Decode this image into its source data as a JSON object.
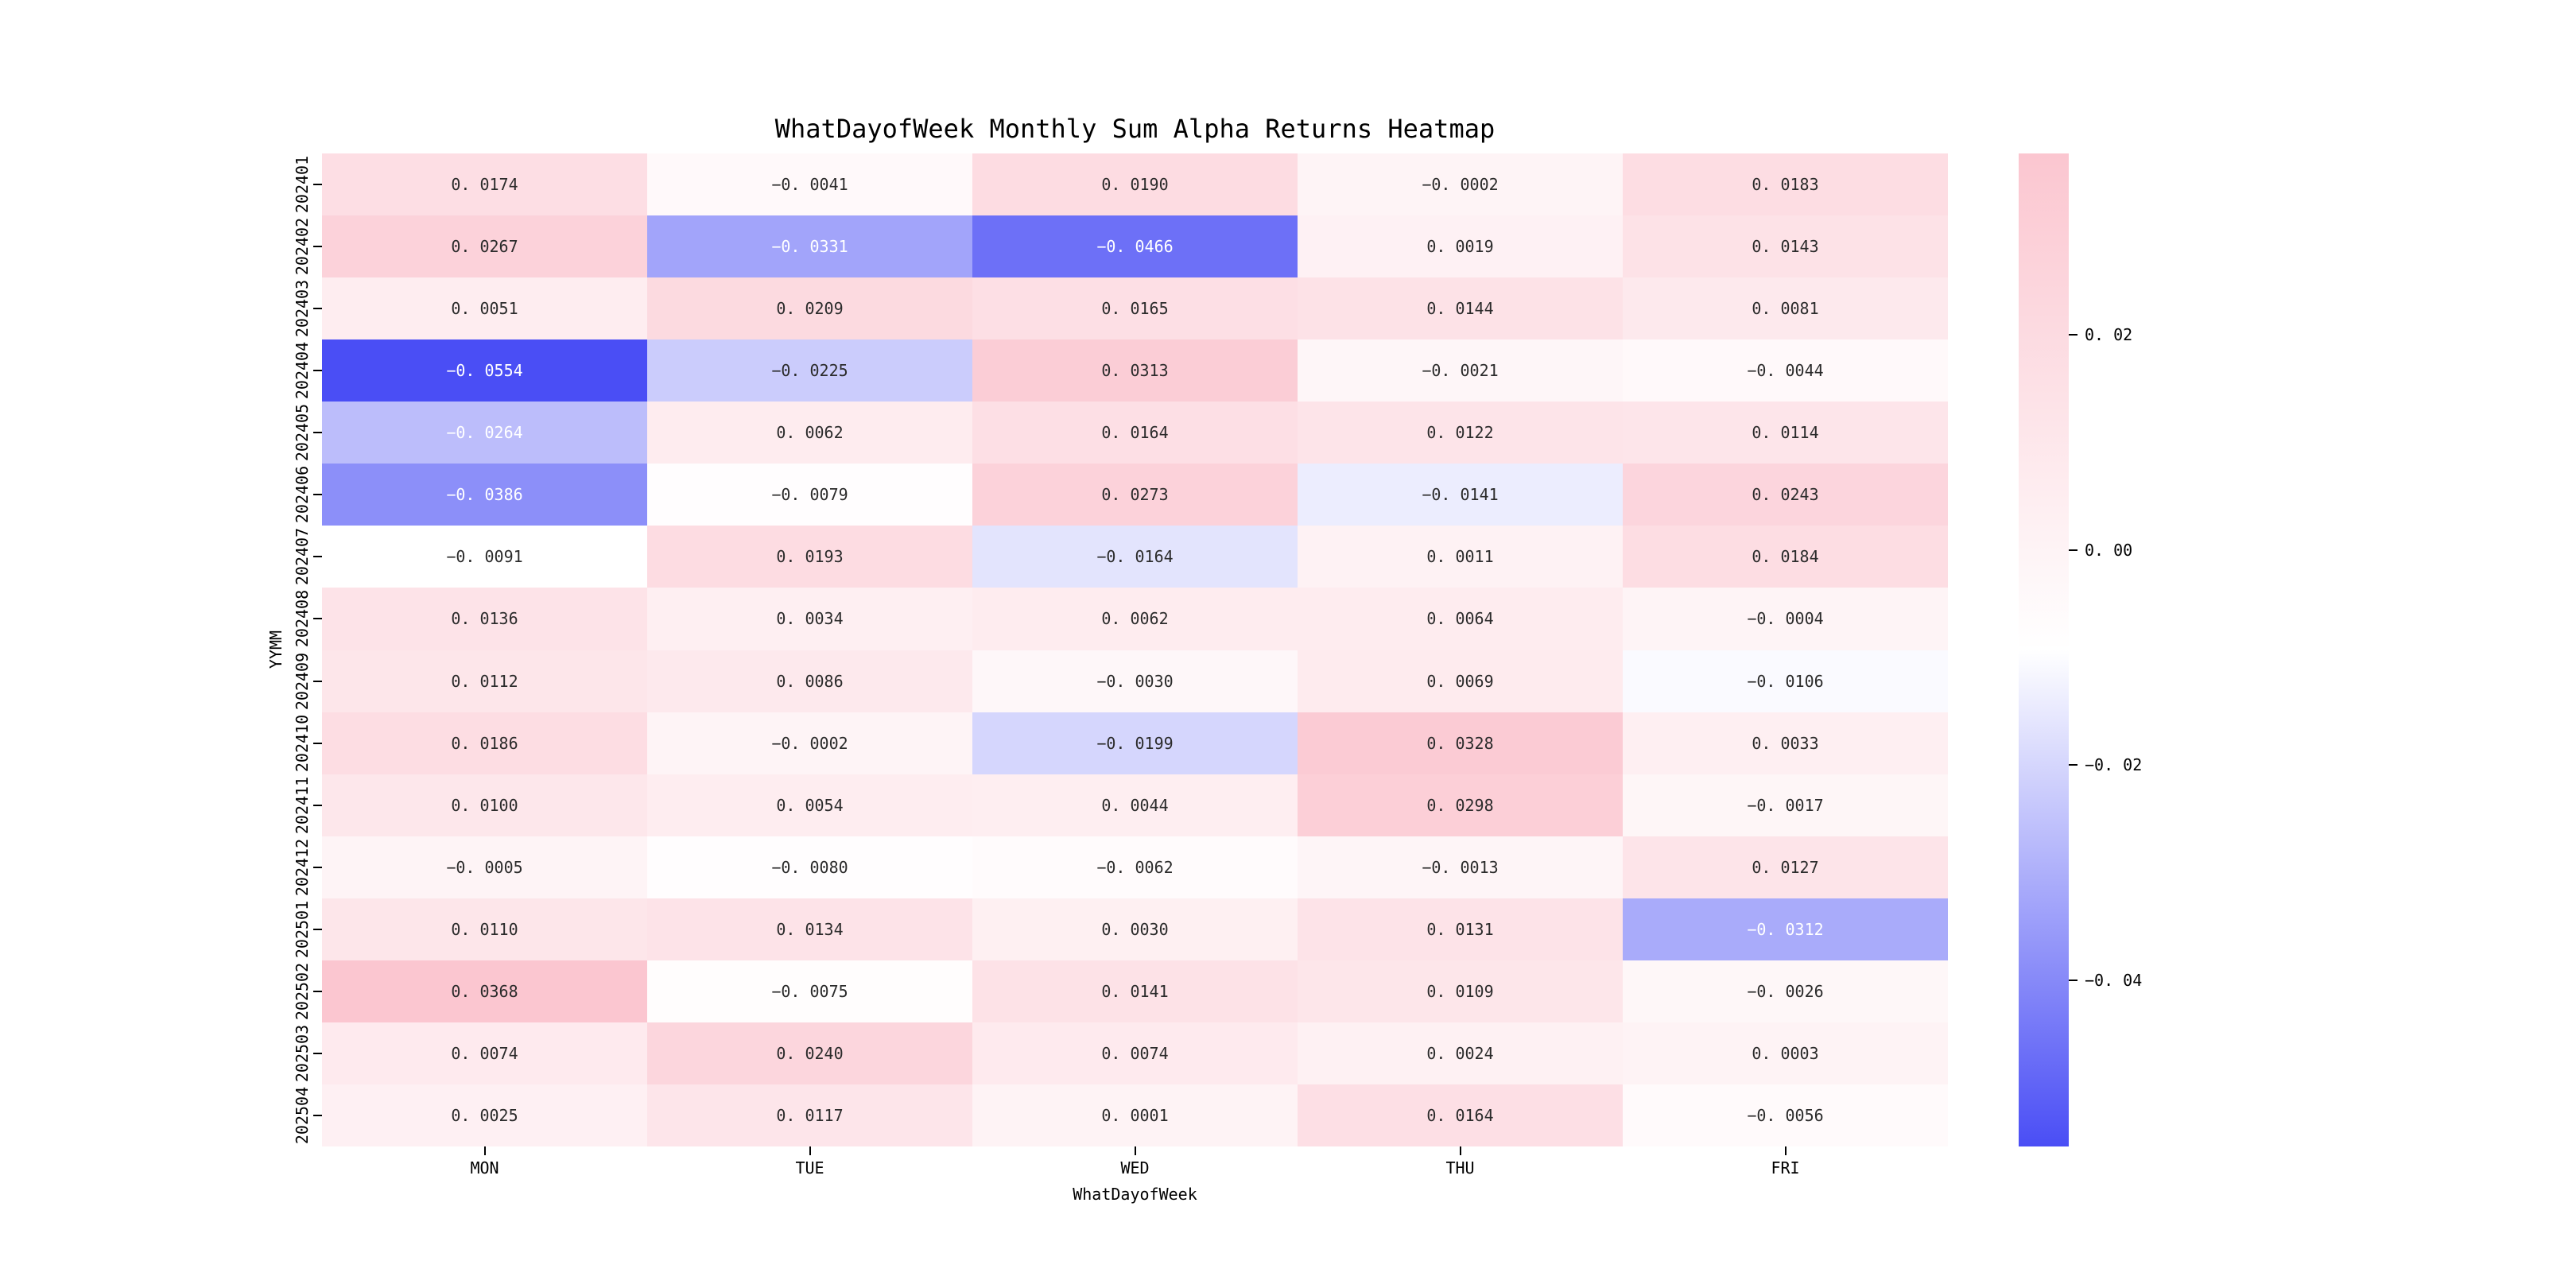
{
  "page": {
    "background": "#ffffff"
  },
  "chart_data": {
    "type": "heatmap",
    "title": "WhatDayofWeek Monthly Sum Alpha Returns Heatmap",
    "xlabel": "WhatDayofWeek",
    "ylabel": "YYMM",
    "columns": [
      "MON",
      "TUE",
      "WED",
      "THU",
      "FRI"
    ],
    "rows": [
      "202401",
      "202402",
      "202403",
      "202404",
      "202405",
      "202406",
      "202407",
      "202408",
      "202409",
      "202410",
      "202411",
      "202412",
      "202501",
      "202502",
      "202503",
      "202504"
    ],
    "values": [
      [
        0.0174,
        -0.0041,
        0.019,
        -0.0002,
        0.0183
      ],
      [
        0.0267,
        -0.0331,
        -0.0466,
        0.0019,
        0.0143
      ],
      [
        0.0051,
        0.0209,
        0.0165,
        0.0144,
        0.0081
      ],
      [
        -0.0554,
        -0.0225,
        0.0313,
        -0.0021,
        -0.0044
      ],
      [
        -0.0264,
        0.0062,
        0.0164,
        0.0122,
        0.0114
      ],
      [
        -0.0386,
        -0.0079,
        0.0273,
        -0.0141,
        0.0243
      ],
      [
        -0.0091,
        0.0193,
        -0.0164,
        0.0011,
        0.0184
      ],
      [
        0.0136,
        0.0034,
        0.0062,
        0.0064,
        -0.0004
      ],
      [
        0.0112,
        0.0086,
        -0.003,
        0.0069,
        -0.0106
      ],
      [
        0.0186,
        -0.0002,
        -0.0199,
        0.0328,
        0.0033
      ],
      [
        0.01,
        0.0054,
        0.0044,
        0.0298,
        -0.0017
      ],
      [
        -0.0005,
        -0.008,
        -0.0062,
        -0.0013,
        0.0127
      ],
      [
        0.011,
        0.0134,
        0.003,
        0.0131,
        -0.0312
      ],
      [
        0.0368,
        -0.0075,
        0.0141,
        0.0109,
        -0.0026
      ],
      [
        0.0074,
        0.024,
        0.0074,
        0.0024,
        0.0003
      ],
      [
        0.0025,
        0.0117,
        0.0001,
        0.0164,
        -0.0056
      ]
    ],
    "value_decimals": 4,
    "vmin": -0.0554,
    "vmax": 0.0368,
    "color_midpoint": -0.0093,
    "colors": {
      "high_pink": "#fbc6d0",
      "mid_white": "#ffffff",
      "low_blue": "#4a4ef5",
      "cell_text_dark": "#2b2b2b",
      "cell_text_light": "#ffffff",
      "axis_text": "#000000"
    },
    "white_text_below": -0.0255,
    "colorbar": {
      "position": "right",
      "ticks": [
        0.02,
        0.0,
        -0.02,
        -0.04
      ],
      "tick_decimals": 2
    },
    "grid": false,
    "legend_position": "colorbar-right"
  }
}
